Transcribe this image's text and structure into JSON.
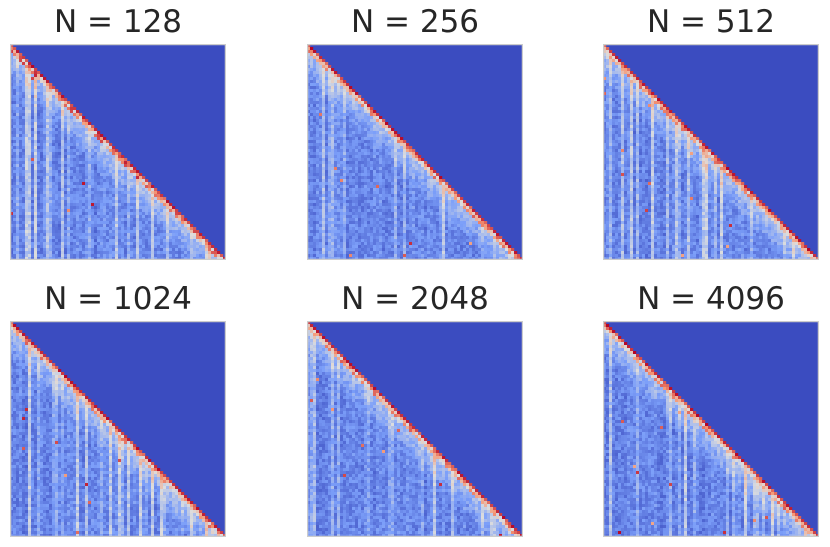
{
  "chart_data": [
    {
      "type": "heatmap",
      "title": "N = 128",
      "matrix": "lower-triangular",
      "colormap": "coolwarm",
      "background_color": "#3b4cc0",
      "high_color": "#b40426",
      "diagonal_intensity": "high",
      "off_diagonal_intensity": "low",
      "noise_seed": 128
    },
    {
      "type": "heatmap",
      "title": "N = 256",
      "matrix": "lower-triangular",
      "colormap": "coolwarm",
      "background_color": "#3b4cc0",
      "high_color": "#b40426",
      "diagonal_intensity": "high",
      "off_diagonal_intensity": "low",
      "noise_seed": 256
    },
    {
      "type": "heatmap",
      "title": "N = 512",
      "matrix": "lower-triangular",
      "colormap": "coolwarm",
      "background_color": "#3b4cc0",
      "high_color": "#b40426",
      "diagonal_intensity": "high",
      "off_diagonal_intensity": "low",
      "noise_seed": 512
    },
    {
      "type": "heatmap",
      "title": "N = 1024",
      "matrix": "lower-triangular",
      "colormap": "coolwarm",
      "background_color": "#3b4cc0",
      "high_color": "#b40426",
      "diagonal_intensity": "high",
      "off_diagonal_intensity": "low",
      "noise_seed": 1024
    },
    {
      "type": "heatmap",
      "title": "N = 2048",
      "matrix": "lower-triangular",
      "colormap": "coolwarm",
      "background_color": "#3b4cc0",
      "high_color": "#b40426",
      "diagonal_intensity": "high",
      "off_diagonal_intensity": "low",
      "noise_seed": 2048
    },
    {
      "type": "heatmap",
      "title": "N = 4096",
      "matrix": "lower-triangular",
      "colormap": "coolwarm",
      "background_color": "#3b4cc0",
      "high_color": "#b40426",
      "diagonal_intensity": "high",
      "off_diagonal_intensity": "low",
      "noise_seed": 4096
    }
  ]
}
